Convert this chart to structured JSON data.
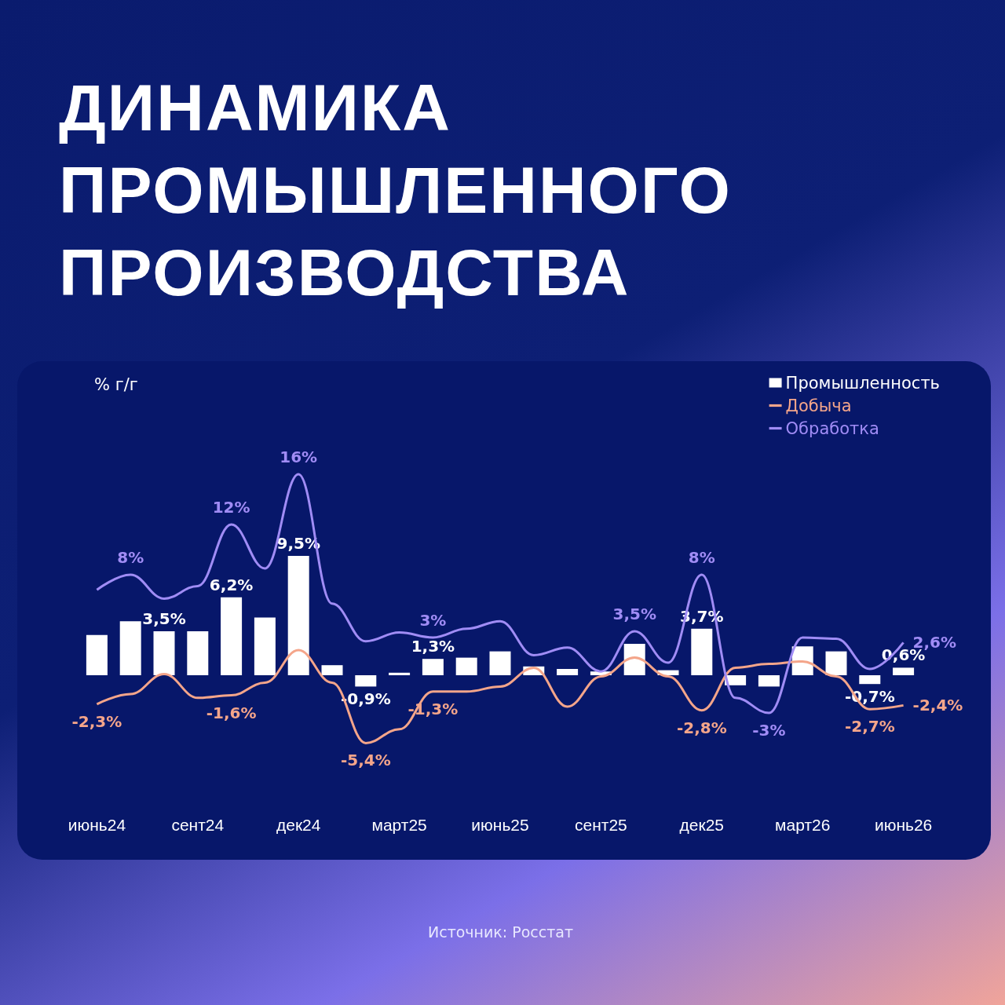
{
  "chart_data": {
    "type": "bar",
    "title": "ДИНАМИКА ПРОМЫШЛЕННОГО ПРОИЗВОДСТВА",
    "ylabel": "% г/г",
    "annotations": [
      "Источник: Росстат"
    ],
    "categories": [
      "июнь24",
      null,
      null,
      "сент24",
      null,
      null,
      "дек24",
      null,
      null,
      "март25",
      null,
      null,
      "июнь25",
      null,
      null,
      "сент25",
      null,
      null,
      "дек25",
      null,
      null,
      "март26",
      null,
      null,
      "июнь26"
    ],
    "series": [
      {
        "name": "Промышленность",
        "color": "#ffffff",
        "values": [
          3.2,
          4.3,
          3.5,
          3.5,
          6.2,
          4.6,
          9.5,
          0.8,
          -0.9,
          0.2,
          1.3,
          1.4,
          1.9,
          0.7,
          0.5,
          0.3,
          2.5,
          0.4,
          3.7,
          -0.8,
          -0.9,
          2.3,
          1.9,
          -0.7,
          0.6
        ],
        "value_labels": [
          null,
          null,
          "3,5%",
          null,
          "6,2%",
          null,
          "9,5%",
          null,
          "-0,9%",
          null,
          "1,3%",
          null,
          null,
          null,
          null,
          null,
          null,
          null,
          "3,7%",
          null,
          null,
          null,
          null,
          "-0,7%",
          "0,6%"
        ]
      },
      {
        "name": "Добыча",
        "type": "line",
        "color": "#f4a58a",
        "values": [
          -2.3,
          -1.5,
          0.1,
          -1.8,
          -1.6,
          -0.6,
          2.0,
          -0.6,
          -5.4,
          -4.3,
          -1.3,
          -1.3,
          -0.9,
          0.6,
          -2.5,
          -0.1,
          1.4,
          -0.1,
          -2.8,
          0.6,
          0.9,
          1.1,
          -0.1,
          -2.7,
          -2.4
        ],
        "value_labels": [
          "-2,3%",
          null,
          null,
          null,
          "-1,6%",
          null,
          null,
          null,
          "-5,4%",
          null,
          "-1,3%",
          null,
          null,
          null,
          null,
          null,
          null,
          null,
          "-2,8%",
          null,
          null,
          null,
          null,
          "-2,7%",
          "-2,4%"
        ]
      },
      {
        "name": "Обработка",
        "type": "line",
        "color": "#a08cf5",
        "values": [
          6.8,
          8,
          6.1,
          7.1,
          12,
          8.5,
          16,
          5.7,
          2.7,
          3.4,
          3,
          3.7,
          4.3,
          1.6,
          2.2,
          0.3,
          3.5,
          1.0,
          8,
          -1.8,
          -3,
          3.0,
          2.9,
          0.5,
          2.6
        ],
        "value_labels": [
          null,
          "8%",
          null,
          null,
          "12%",
          null,
          "16%",
          null,
          null,
          null,
          "3%",
          null,
          null,
          null,
          null,
          null,
          "3,5%",
          null,
          "8%",
          null,
          "-3%",
          null,
          null,
          null,
          "2,6%"
        ]
      }
    ],
    "legend": "top right",
    "grid": false,
    "tick_labels": "x",
    "marker": "none"
  }
}
